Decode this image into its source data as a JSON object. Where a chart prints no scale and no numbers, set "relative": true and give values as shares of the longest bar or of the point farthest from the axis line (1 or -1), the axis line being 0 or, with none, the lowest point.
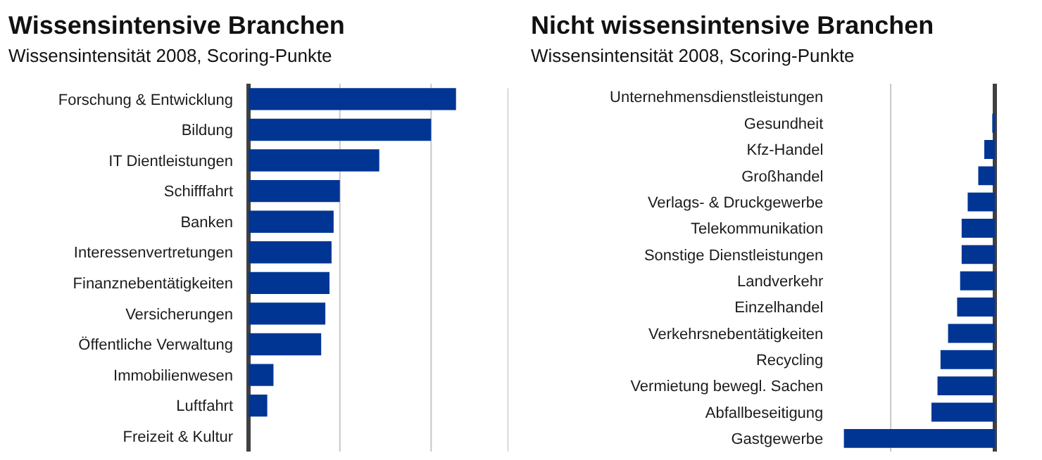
{
  "chart_data": [
    {
      "type": "bar",
      "orientation": "horizontal",
      "relative": true,
      "ref_lines": [
        {
          "axis": "x",
          "value": 0.44,
          "color": "#c8c8c8"
        },
        {
          "axis": "x",
          "value": 0.88,
          "color": "#c8c8c8"
        }
      ],
      "title": "Wissensintensive Branchen",
      "subtitle": "Wissensintensität 2008, Scoring-Punkte",
      "categories": [
        "Forschung & Entwicklung",
        "Bildung",
        "IT Dientleistungen",
        "Schifffahrt",
        "Banken",
        "Interessenvertretungen",
        "Finanznebentätigkeiten",
        "Versicherungen",
        "Öffentliche Verwaltung",
        "Immobilienwesen",
        "Luftfahrt",
        "Freizeit & Kultur"
      ],
      "values": [
        1,
        0.88,
        0.63,
        0.44,
        0.41,
        0.4,
        0.39,
        0.37,
        0.35,
        0.12,
        0.09,
        0
      ],
      "color": "#003594"
    },
    {
      "type": "bar",
      "orientation": "horizontal",
      "relative": true,
      "ref_lines": [
        {
          "axis": "x",
          "value": -0.69,
          "color": "#c8c8c8"
        }
      ],
      "title": "Nicht wissensintensive Branchen",
      "subtitle": "Wissensintensität 2008, Scoring-Punkte",
      "categories": [
        "Unternehmensdienstleistungen",
        "Gesundheit",
        "Kfz-Handel",
        "Großhandel",
        "Verlags- & Druckgewerbe",
        "Telekommunikation",
        "Sonstige Dienstleistungen",
        "Landverkehr",
        "Einzelhandel",
        "Verkehrsnebentätigkeiten",
        "Recycling",
        "Vermietung bewegl. Sachen",
        "Abfallbeseitigung",
        "Gastgewerbe"
      ],
      "values": [
        0,
        -0.01,
        -0.07,
        -0.11,
        -0.18,
        -0.22,
        -0.22,
        -0.23,
        -0.25,
        -0.31,
        -0.36,
        -0.38,
        -0.42,
        -1
      ],
      "color": "#003594"
    }
  ]
}
